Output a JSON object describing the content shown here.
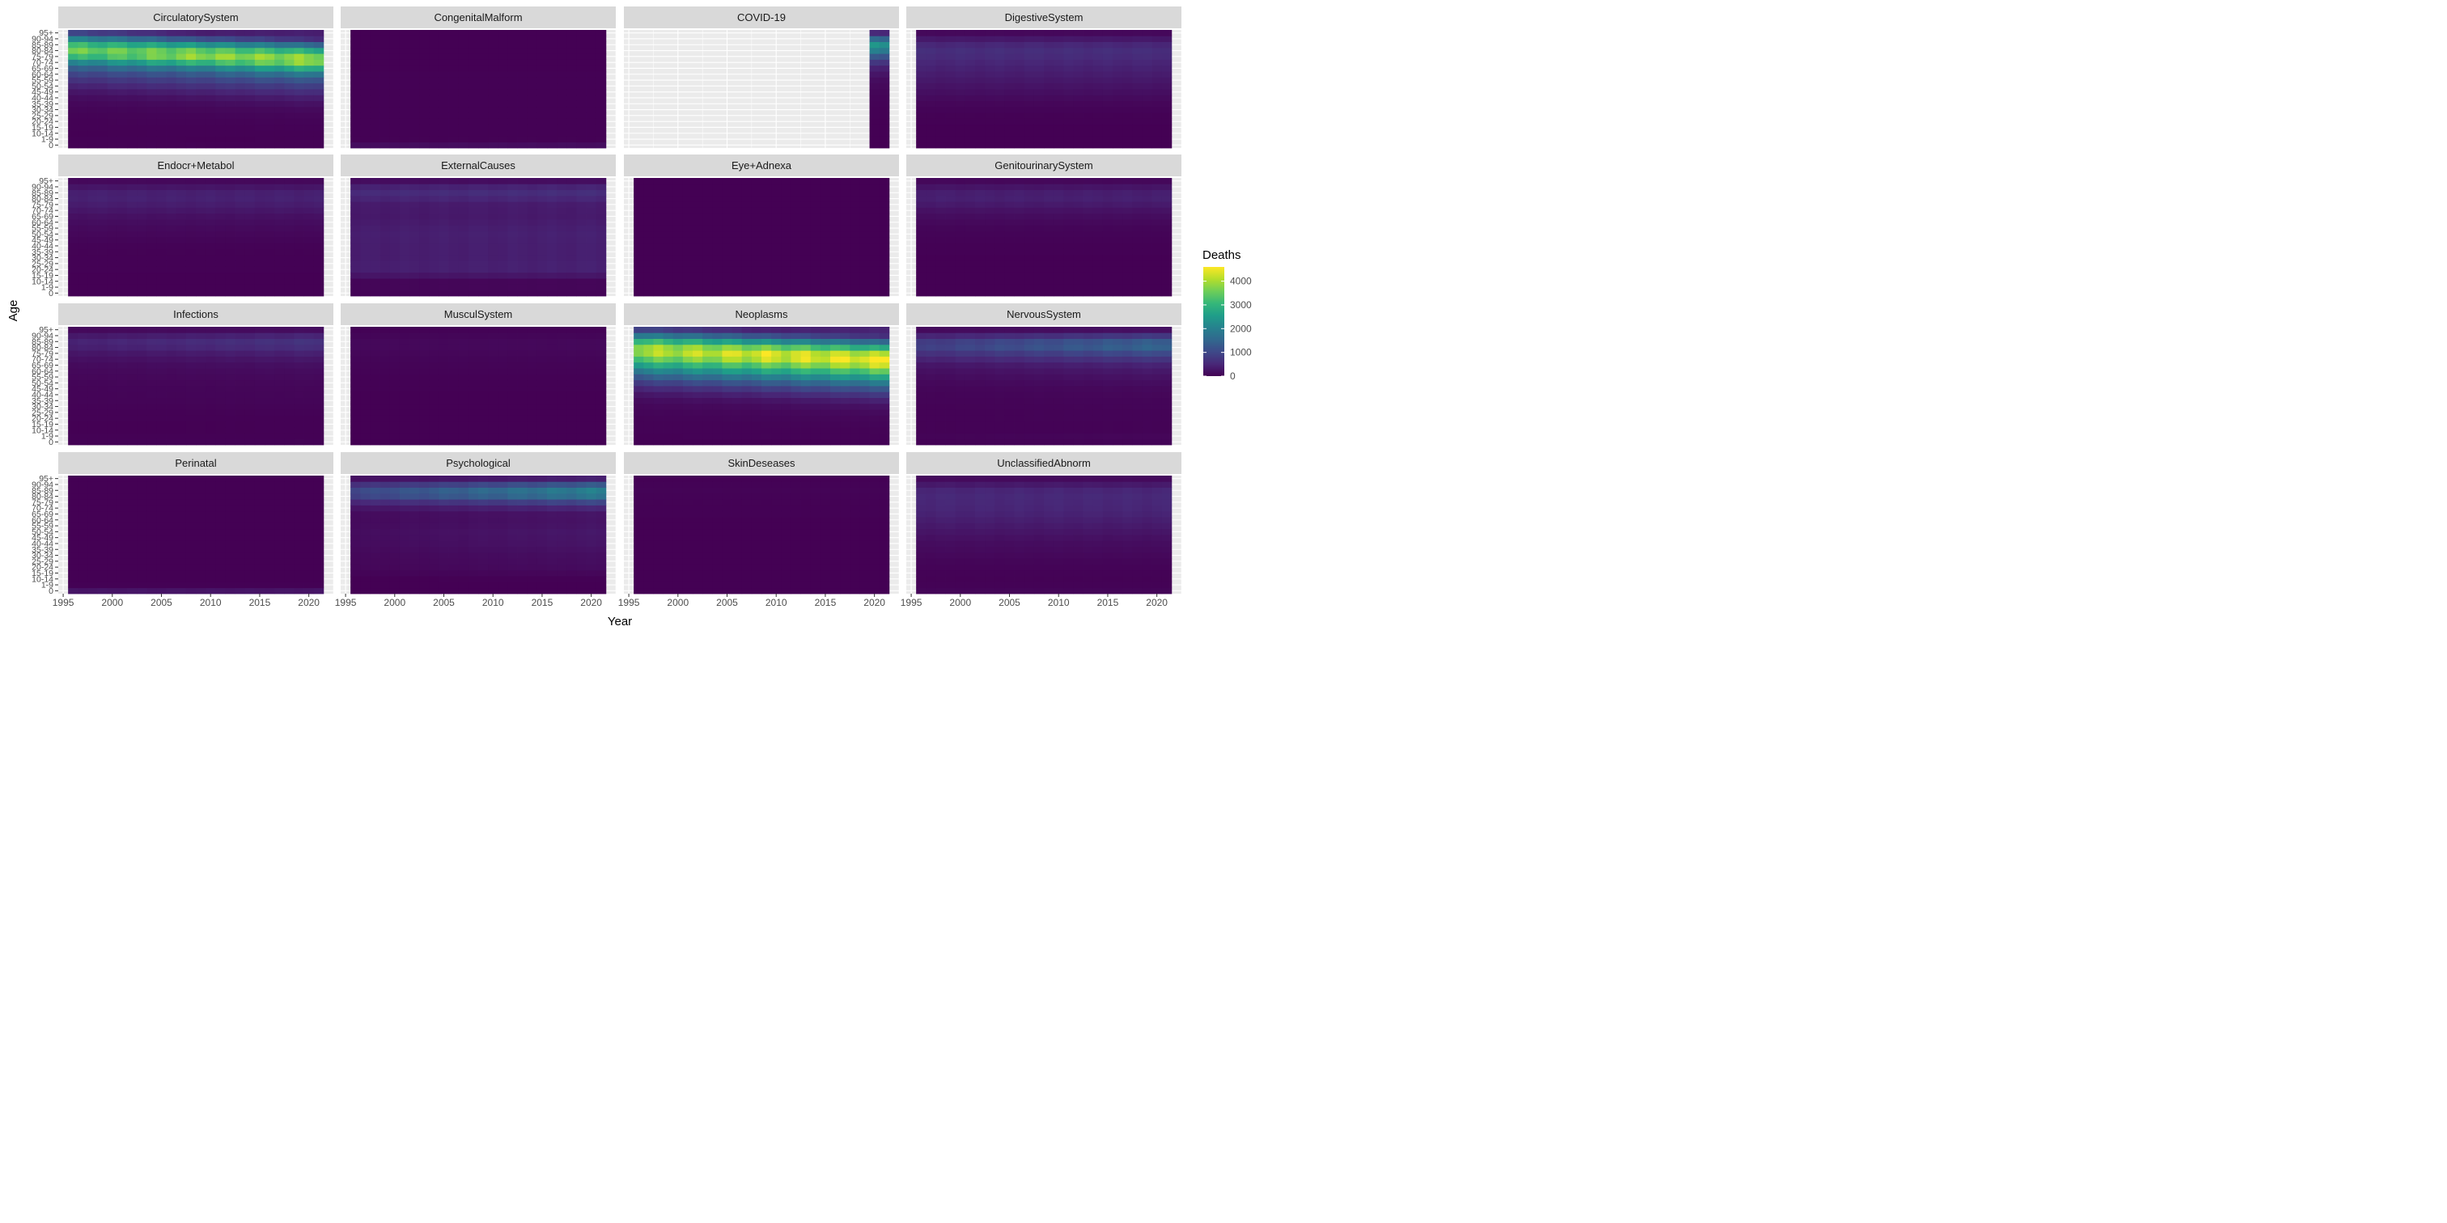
{
  "chart_data": {
    "type": "heatmap",
    "title": "",
    "xlabel": "Year",
    "ylabel": "Age",
    "legend": {
      "title": "Deaths",
      "placement": "right",
      "ticks": [
        "4000",
        "3000",
        "2000",
        "1000",
        "0"
      ],
      "range": [
        0,
        4600
      ],
      "palette": "viridis"
    },
    "grid": true,
    "xlim": [
      1994.5,
      2022.5
    ],
    "x_ticks": [
      1995,
      2000,
      2005,
      2010,
      2015,
      2020
    ],
    "x_tick_labels": [
      "1995",
      "2000",
      "2005",
      "2010",
      "2015",
      "2020"
    ],
    "years": [
      1996,
      1997,
      1998,
      1999,
      2000,
      2001,
      2002,
      2003,
      2004,
      2005,
      2006,
      2007,
      2008,
      2009,
      2010,
      2011,
      2012,
      2013,
      2014,
      2015,
      2016,
      2017,
      2018,
      2019,
      2020,
      2021
    ],
    "age_groups": [
      "0",
      "1-9",
      "10-14",
      "15-19",
      "20-24",
      "25-29",
      "30-34",
      "35-39",
      "40-44",
      "45-49",
      "50-54",
      "55-59",
      "60-64",
      "65-69",
      "70-74",
      "75-79",
      "80-84",
      "85-89",
      "90-94",
      "95+"
    ],
    "y_tick_labels": [
      "95+",
      "90-94",
      "85-89",
      "80-84",
      "75-79",
      "70-74",
      "65-69",
      "60-64",
      "55-59",
      "50-54",
      "45-49",
      "40-44",
      "35-39",
      "30-34",
      "25-29",
      "20-24",
      "15-19",
      "10-14",
      "1-9",
      "0"
    ],
    "panels": [
      {
        "name": "CirculatorySystem",
        "profile": [
          20,
          5,
          8,
          15,
          25,
          40,
          70,
          120,
          220,
          380,
          600,
          850,
          1200,
          1800,
          2800,
          3600,
          3300,
          2300,
          1100,
          350
        ],
        "trend": 0.0,
        "late_peak": 1.0,
        "covid_only": false
      },
      {
        "name": "CongenitalMalform",
        "profile": [
          150,
          20,
          10,
          8,
          8,
          8,
          8,
          8,
          8,
          8,
          8,
          8,
          8,
          6,
          6,
          5,
          4,
          3,
          2,
          1
        ],
        "trend": 0.0,
        "late_peak": 0.0,
        "covid_only": false
      },
      {
        "name": "COVID-19",
        "profile": [
          0,
          0,
          0,
          2,
          5,
          10,
          15,
          25,
          40,
          60,
          100,
          150,
          250,
          400,
          700,
          1200,
          1900,
          2300,
          1500,
          500
        ],
        "trend": 0.0,
        "late_peak": 0.0,
        "covid_only": true,
        "covid_years": [
          2020,
          2021
        ]
      },
      {
        "name": "DigestiveSystem",
        "profile": [
          5,
          3,
          3,
          5,
          10,
          20,
          40,
          70,
          120,
          180,
          240,
          300,
          360,
          420,
          480,
          560,
          600,
          500,
          300,
          100
        ],
        "trend": 0.0,
        "late_peak": 0.0,
        "covid_only": false
      },
      {
        "name": "Endocr+Metabol",
        "profile": [
          10,
          5,
          5,
          5,
          8,
          10,
          15,
          20,
          30,
          50,
          80,
          110,
          150,
          200,
          280,
          360,
          420,
          400,
          260,
          100
        ],
        "trend": 0.0,
        "late_peak": 0.0,
        "covid_only": false
      },
      {
        "name": "ExternalCauses",
        "profile": [
          40,
          60,
          60,
          250,
          380,
          380,
          360,
          360,
          360,
          370,
          380,
          360,
          330,
          300,
          310,
          330,
          450,
          550,
          420,
          150
        ],
        "trend": 0.1,
        "late_peak": 0.0,
        "covid_only": false
      },
      {
        "name": "Eye+Adnexa",
        "profile": [
          0,
          0,
          0,
          0,
          0,
          0,
          0,
          0,
          0,
          0,
          0,
          0,
          0,
          0,
          0,
          1,
          1,
          1,
          1,
          0
        ],
        "trend": 0.0,
        "late_peak": 0.0,
        "covid_only": false
      },
      {
        "name": "GenitourinarySystem",
        "profile": [
          5,
          2,
          2,
          2,
          2,
          3,
          5,
          8,
          15,
          25,
          40,
          60,
          100,
          150,
          220,
          320,
          400,
          380,
          250,
          90
        ],
        "trend": 0.0,
        "late_peak": 0.0,
        "covid_only": false
      },
      {
        "name": "Infections",
        "profile": [
          20,
          10,
          5,
          5,
          8,
          15,
          25,
          35,
          40,
          45,
          55,
          70,
          90,
          120,
          180,
          260,
          380,
          430,
          300,
          100
        ],
        "trend": 0.6,
        "late_peak": 0.0,
        "covid_only": false
      },
      {
        "name": "MusculSystem",
        "profile": [
          0,
          0,
          0,
          1,
          1,
          2,
          3,
          4,
          6,
          8,
          12,
          18,
          25,
          35,
          50,
          70,
          90,
          90,
          60,
          25
        ],
        "trend": 0.0,
        "late_peak": 0.0,
        "covid_only": false
      },
      {
        "name": "Neoplasms",
        "profile": [
          10,
          30,
          25,
          30,
          50,
          70,
          120,
          220,
          420,
          750,
          1200,
          1800,
          2500,
          3200,
          3900,
          4100,
          3400,
          2200,
          1100,
          400
        ],
        "trend": 0.0,
        "late_peak": 1.0,
        "covid_only": false
      },
      {
        "name": "NervousSystem",
        "profile": [
          30,
          40,
          20,
          20,
          25,
          25,
          30,
          35,
          45,
          60,
          90,
          130,
          180,
          260,
          420,
          620,
          850,
          780,
          450,
          120
        ],
        "trend": 0.75,
        "late_peak": 0.0,
        "covid_only": false
      },
      {
        "name": "Perinatal",
        "profile": [
          250,
          15,
          2,
          1,
          1,
          1,
          1,
          1,
          0,
          0,
          0,
          0,
          0,
          0,
          0,
          0,
          0,
          0,
          0,
          0
        ],
        "trend": 0.0,
        "late_peak": 0.0,
        "covid_only": false
      },
      {
        "name": "Psychological",
        "profile": [
          0,
          0,
          5,
          40,
          70,
          80,
          90,
          110,
          130,
          140,
          150,
          130,
          120,
          130,
          250,
          500,
          900,
          1000,
          650,
          200
        ],
        "trend": 1.0,
        "late_peak": 0.0,
        "covid_only": false
      },
      {
        "name": "SkinDeseases",
        "profile": [
          0,
          0,
          0,
          0,
          0,
          0,
          0,
          1,
          1,
          2,
          3,
          4,
          6,
          8,
          12,
          20,
          30,
          35,
          25,
          10
        ],
        "trend": 0.0,
        "late_peak": 0.0,
        "covid_only": false
      },
      {
        "name": "UnclassifiedAbnorm",
        "profile": [
          60,
          30,
          20,
          30,
          40,
          60,
          90,
          120,
          150,
          200,
          260,
          320,
          380,
          440,
          480,
          500,
          520,
          480,
          320,
          120
        ],
        "trend": 0.0,
        "late_peak": 0.0,
        "covid_only": false
      }
    ]
  }
}
